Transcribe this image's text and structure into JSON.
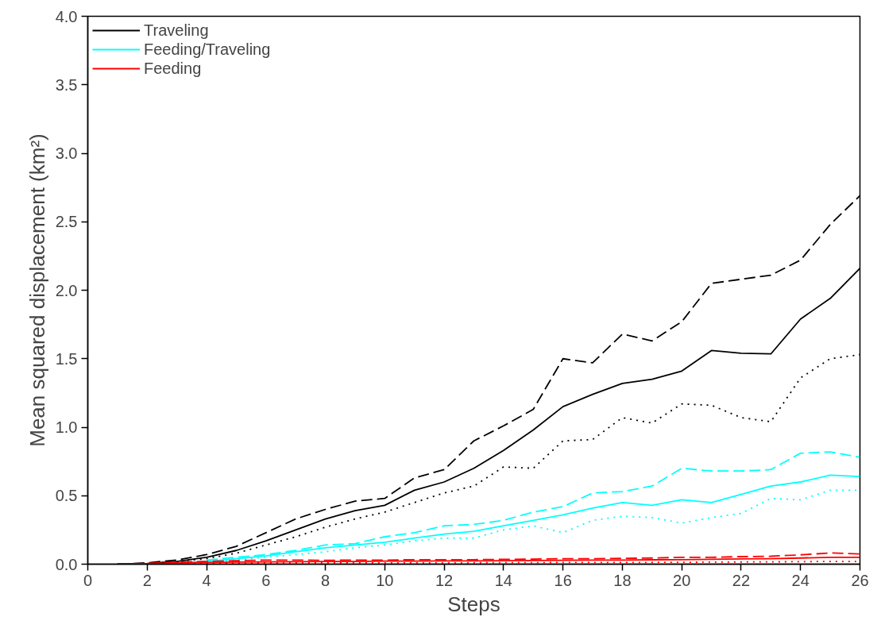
{
  "chart_data": {
    "type": "line",
    "xlabel": "Steps",
    "ylabel": "Mean squared displacement (km²)",
    "x": [
      1,
      2,
      3,
      4,
      5,
      6,
      7,
      8,
      9,
      10,
      11,
      12,
      13,
      14,
      15,
      16,
      17,
      18,
      19,
      20,
      21,
      22,
      23,
      24,
      25,
      26
    ],
    "xlim": [
      0,
      26
    ],
    "xticks": [
      0,
      2,
      4,
      6,
      8,
      10,
      12,
      14,
      16,
      18,
      20,
      22,
      24,
      26
    ],
    "ylim": [
      0,
      4
    ],
    "yticks": [
      {
        "value": 0,
        "label": "0.0"
      },
      {
        "value": 0.5,
        "label": "0.5"
      },
      {
        "value": 1,
        "label": "1.0"
      },
      {
        "value": 1.5,
        "label": "1.5"
      },
      {
        "value": 2,
        "label": "2.0"
      },
      {
        "value": 2.5,
        "label": "2.5"
      },
      {
        "value": 3,
        "label": "3.0"
      },
      {
        "value": 3.5,
        "label": "3.5"
      },
      {
        "value": 4,
        "label": "4.0"
      }
    ],
    "grid": false,
    "legend": "top left",
    "marker": "none",
    "series": [
      {
        "name": "Traveling",
        "color": "#000000",
        "line_style": "solid",
        "values": [
          0,
          0.005,
          0.02,
          0.05,
          0.1,
          0.17,
          0.25,
          0.33,
          0.39,
          0.43,
          0.54,
          0.6,
          0.7,
          0.83,
          0.98,
          1.15,
          1.24,
          1.32,
          1.35,
          1.41,
          1.56,
          1.54,
          1.535,
          1.79,
          1.94,
          2.16
        ]
      },
      {
        "color": "#000000",
        "line_style": "dashed",
        "values": [
          0,
          0.01,
          0.03,
          0.07,
          0.13,
          0.23,
          0.33,
          0.4,
          0.46,
          0.48,
          0.63,
          0.69,
          0.9,
          1.01,
          1.13,
          1.5,
          1.47,
          1.68,
          1.63,
          1.77,
          2.05,
          2.08,
          2.11,
          2.22,
          2.48,
          2.69
        ]
      },
      {
        "color": "#000000",
        "line_style": "dotted",
        "values": [
          0,
          0.005,
          0.02,
          0.04,
          0.08,
          0.14,
          0.2,
          0.27,
          0.33,
          0.38,
          0.45,
          0.52,
          0.57,
          0.71,
          0.7,
          0.9,
          0.91,
          1.07,
          1.03,
          1.17,
          1.16,
          1.07,
          1.04,
          1.36,
          1.5,
          1.53
        ]
      },
      {
        "name": "Feeding/Traveling",
        "color": "#00ffff",
        "line_style": "solid",
        "values": [
          null,
          null,
          0.01,
          0.02,
          0.04,
          0.06,
          0.09,
          0.12,
          0.14,
          0.16,
          0.19,
          0.22,
          0.24,
          0.28,
          0.32,
          0.36,
          0.41,
          0.45,
          0.43,
          0.47,
          0.45,
          0.51,
          0.57,
          0.6,
          0.65,
          0.64
        ]
      },
      {
        "color": "#00ffff",
        "line_style": "dashed",
        "values": [
          null,
          null,
          null,
          0.03,
          0.05,
          0.07,
          0.1,
          0.14,
          0.15,
          0.2,
          0.23,
          0.28,
          0.29,
          0.32,
          0.38,
          0.42,
          0.52,
          0.53,
          0.57,
          0.7,
          0.68,
          0.68,
          0.69,
          0.81,
          0.82,
          0.78
        ]
      },
      {
        "color": "#00ffff",
        "line_style": "dotted",
        "values": [
          null,
          null,
          null,
          0.015,
          0.03,
          0.05,
          0.07,
          0.09,
          0.12,
          0.14,
          0.17,
          0.19,
          0.19,
          0.25,
          0.28,
          0.23,
          0.32,
          0.35,
          0.34,
          0.3,
          0.34,
          0.37,
          0.48,
          0.47,
          0.54,
          0.54
        ]
      },
      {
        "name": "Feeding",
        "color": "#ff0000",
        "line_style": "solid",
        "values": [
          0,
          0.003,
          0.01,
          0.012,
          0.015,
          0.017,
          0.018,
          0.02,
          0.02,
          0.022,
          0.022,
          0.024,
          0.024,
          0.025,
          0.027,
          0.028,
          0.03,
          0.03,
          0.032,
          0.033,
          0.035,
          0.038,
          0.04,
          0.045,
          0.05,
          0.05
        ]
      },
      {
        "color": "#ff0000",
        "line_style": "dashed",
        "values": [
          0,
          0.005,
          0.015,
          0.02,
          0.025,
          0.03,
          0.03,
          0.028,
          0.03,
          0.03,
          0.033,
          0.033,
          0.033,
          0.035,
          0.037,
          0.04,
          0.04,
          0.042,
          0.045,
          0.05,
          0.05,
          0.055,
          0.058,
          0.068,
          0.082,
          0.075
        ]
      },
      {
        "color": "#ff0000",
        "line_style": "dotted",
        "values": [
          0,
          0.002,
          0.005,
          0.007,
          0.008,
          0.009,
          0.009,
          0.01,
          0.01,
          0.01,
          0.01,
          0.01,
          0.01,
          0.011,
          0.011,
          0.012,
          0.012,
          0.012,
          0.013,
          0.014,
          0.015,
          0.016,
          0.017,
          0.018,
          0.02,
          0.02
        ]
      }
    ]
  }
}
